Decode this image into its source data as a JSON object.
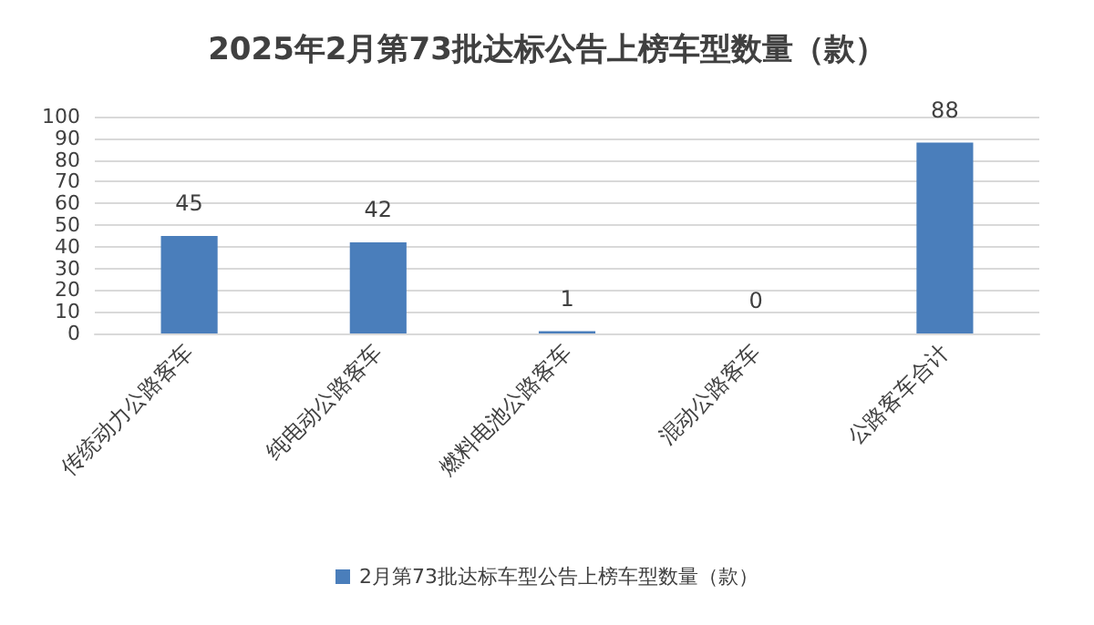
{
  "chart_data": {
    "type": "bar",
    "title": "2025年2月第73批达标公告上榜车型数量（款）",
    "categories": [
      "传统动力公路客车",
      "纯电动公路客车",
      "燃料电池公路客车",
      "混动公路客车",
      "公路客车合计"
    ],
    "series": [
      {
        "name": "2月第73批达标车型公告上榜车型数量（款）",
        "color": "#4a7ebb",
        "values": [
          45,
          42,
          1,
          0,
          88
        ]
      }
    ],
    "ylim": [
      0,
      100
    ],
    "yticks": [
      0,
      10,
      20,
      30,
      40,
      50,
      60,
      70,
      80,
      90,
      100
    ],
    "grid": "y",
    "legend": "bottom",
    "data_labels": true
  }
}
